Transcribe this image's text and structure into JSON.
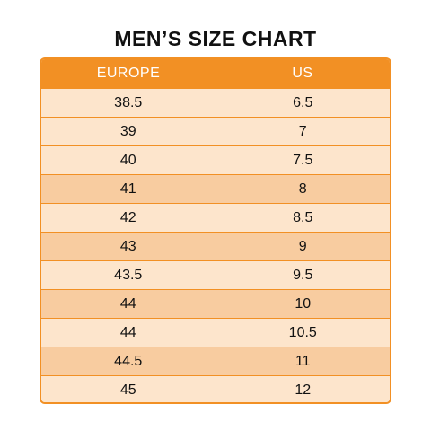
{
  "title": "MEN’S SIZE CHART",
  "colors": {
    "header": "#f29024",
    "row_light": "#fde5cc",
    "row_dark": "#f8cca0",
    "border": "#f29024"
  },
  "table": {
    "columns": [
      "EUROPE",
      "US"
    ],
    "rows": [
      [
        "38.5",
        "6.5"
      ],
      [
        "39",
        "7"
      ],
      [
        "40",
        "7.5"
      ],
      [
        "41",
        "8"
      ],
      [
        "42",
        "8.5"
      ],
      [
        "43",
        "9"
      ],
      [
        "43.5",
        "9.5"
      ],
      [
        "44",
        "10"
      ],
      [
        "44",
        "10.5"
      ],
      [
        "44.5",
        "11"
      ],
      [
        "45",
        "12"
      ]
    ]
  }
}
